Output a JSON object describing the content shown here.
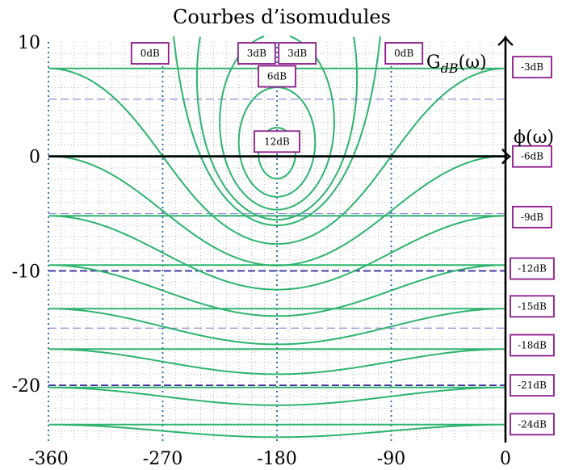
{
  "chart_data": {
    "type": "line",
    "title": "Courbes d’isomudules",
    "xlabel": "ϕ(ω)",
    "ylabel_base": "G",
    "ylabel_sub": "dB",
    "ylabel_arg": "(ω)",
    "xlim": [
      -360,
      0
    ],
    "ylim": [
      -25,
      10
    ],
    "xticks": [
      -360,
      -270,
      -180,
      -90,
      0
    ],
    "xtick_labels": [
      "-360",
      "-270",
      "-180",
      "-90",
      "0"
    ],
    "yticks": [
      10,
      0,
      -10,
      -20
    ],
    "ytick_labels": [
      "10",
      "0",
      "-10",
      "-20"
    ],
    "grid": true,
    "closed_contours": [
      {
        "name": "12dB",
        "M_dB": 12
      },
      {
        "name": "6dB",
        "M_dB": 6
      },
      {
        "name": "3dB",
        "M_dB": 3
      },
      {
        "name": "1dB",
        "M_dB": 1
      },
      {
        "name": "0dB",
        "M_dB": 0
      }
    ],
    "open_contours": [
      {
        "name": "-3dB",
        "M_dB": -3
      },
      {
        "name": "-6dB",
        "M_dB": -6
      },
      {
        "name": "-9dB",
        "M_dB": -9
      },
      {
        "name": "-12dB",
        "M_dB": -12
      },
      {
        "name": "-15dB",
        "M_dB": -15
      },
      {
        "name": "-18dB",
        "M_dB": -18
      },
      {
        "name": "-21dB",
        "M_dB": -21
      },
      {
        "name": "-24dB",
        "M_dB": -24
      }
    ],
    "top_labels": [
      {
        "text": "0dB",
        "phase": -280
      },
      {
        "text": "3dB",
        "phase": -196
      },
      {
        "text": "3dB",
        "phase": -164
      },
      {
        "text": "0dB",
        "phase": -80
      }
    ],
    "inner_labels": [
      {
        "text": "6dB",
        "phase": -180,
        "gain": 7
      },
      {
        "text": "12dB",
        "phase": -180,
        "gain": 1.3
      }
    ],
    "right_labels": [
      {
        "text": "-3dB",
        "gain": 7.8
      },
      {
        "text": "-6dB",
        "gain": 0
      },
      {
        "text": "-9dB",
        "gain": -5.3
      },
      {
        "text": "-12dB",
        "gain": -9.8
      },
      {
        "text": "-15dB",
        "gain": -13.1
      },
      {
        "text": "-18dB",
        "gain": -16.5
      },
      {
        "text": "-21dB",
        "gain": -20.0
      },
      {
        "text": "-24dB",
        "gain": -23.4
      }
    ],
    "curve_color": "#2db36f",
    "box_color": "#8b1a8b",
    "guide_color": "#3a2f9c",
    "vertical_guide_color": "#1f62a8"
  }
}
